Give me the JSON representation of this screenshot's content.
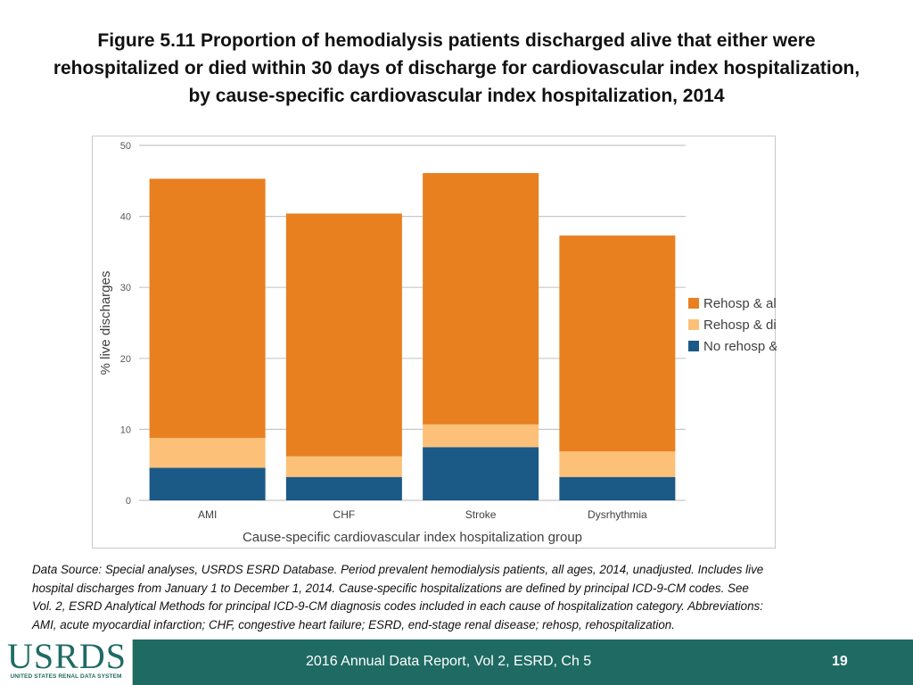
{
  "slide": {
    "title_lines": [
      "Figure 5.11 Proportion of hemodialysis patients discharged alive that either were",
      "rehospitalized or died within 30 days of discharge for cardiovascular index hospitalization,",
      "by cause-specific cardiovascular index hospitalization, 2014"
    ],
    "footnote_lines": [
      "Data Source: Special analyses, USRDS ESRD Database. Period prevalent hemodialysis patients, all ages, 2014, unadjusted. Includes live",
      "hospital discharges from January 1 to December 1, 2014. Cause-specific hospitalizations are defined by principal ICD-9-CM codes. See",
      "Vol. 2, ESRD Analytical Methods for principal ICD-9-CM diagnosis codes included in each cause of hospitalization category. Abbreviations:",
      "AMI, acute myocardial infarction; CHF, congestive heart failure; ESRD, end-stage renal disease; rehosp, rehospitalization."
    ]
  },
  "footer": {
    "logo_text": "USRDS",
    "logo_subtext": "UNITED STATES RENAL DATA SYSTEM",
    "report_label": "2016 Annual Data Report, Vol 2, ESRD, Ch 5",
    "page_number": "19"
  },
  "chart_data": {
    "type": "bar",
    "stacked": true,
    "categories": [
      "AMI",
      "CHF",
      "Stroke",
      "Dysrhythmia"
    ],
    "series": [
      {
        "name": "No rehosp & died",
        "color": "#1b5a87",
        "values": [
          4.6,
          3.3,
          7.5,
          3.3
        ]
      },
      {
        "name": "Rehosp & died",
        "color": "#fcc078",
        "values": [
          4.2,
          2.9,
          3.2,
          3.6
        ]
      },
      {
        "name": "Rehosp & alive",
        "color": "#e8801f",
        "values": [
          36.5,
          34.2,
          35.4,
          30.4
        ]
      }
    ],
    "legend_order": [
      "Rehosp & alive",
      "Rehosp & died",
      "No rehosp & died"
    ],
    "legend_position": "right",
    "xlabel": "Cause-specific cardiovascular index hospitalization group",
    "ylabel": "% live discharges",
    "ylim": [
      0,
      50
    ],
    "yticks": [
      0,
      10,
      20,
      30,
      40,
      50
    ],
    "grid": true
  }
}
